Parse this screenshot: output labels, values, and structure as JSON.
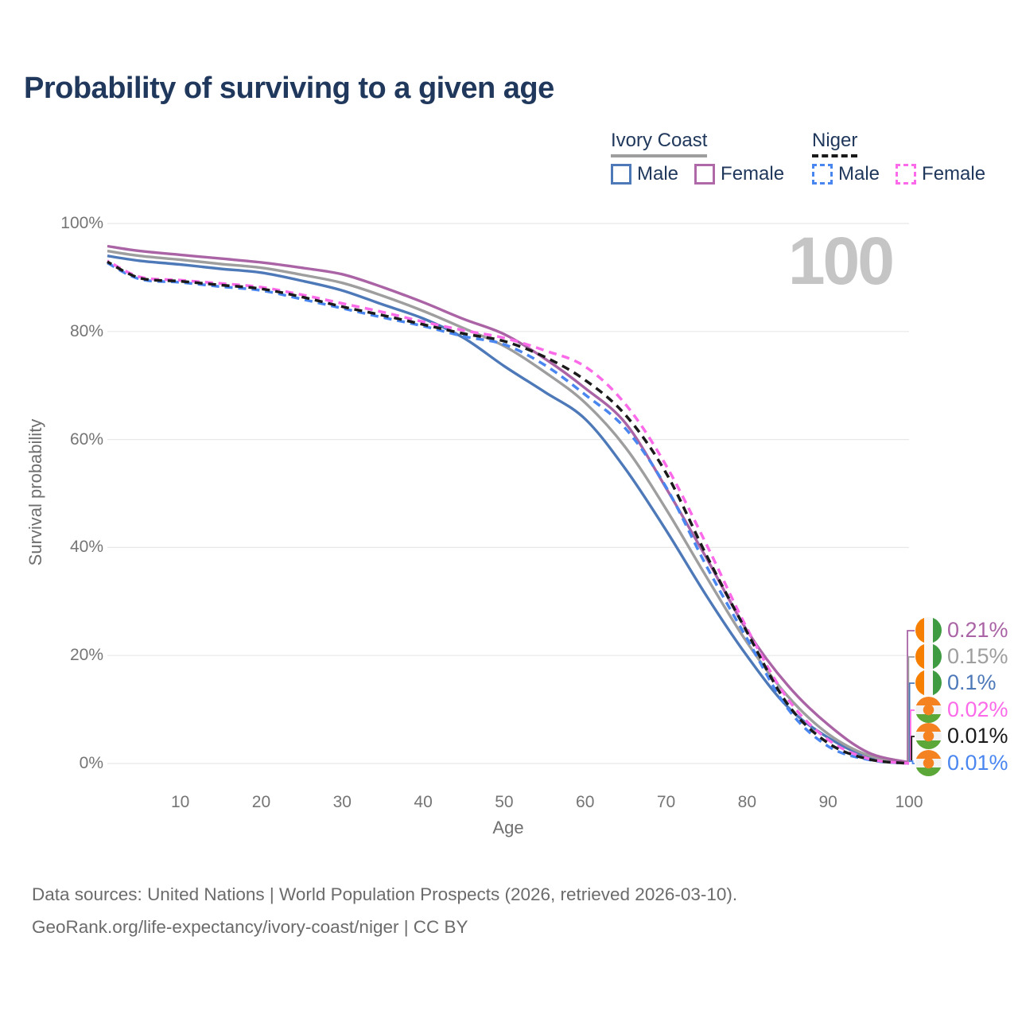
{
  "title": "Probability of surviving to a given age",
  "watermark_age": "100",
  "legend": {
    "groups": [
      {
        "title": "Ivory Coast",
        "line_style": "solid",
        "rule_color": "#9e9e9e",
        "items": [
          {
            "label": "Male",
            "color": "#4e79b9"
          },
          {
            "label": "Female",
            "color": "#b069a8"
          }
        ]
      },
      {
        "title": "Niger",
        "line_style": "dashed",
        "rule_color": "#1a1a1a",
        "items": [
          {
            "label": "Male",
            "color": "#4a86f0"
          },
          {
            "label": "Female",
            "color": "#fb6ae8"
          }
        ]
      }
    ]
  },
  "axes": {
    "x": {
      "title": "Age",
      "min": 1,
      "max": 100,
      "ticks": [
        "10",
        "20",
        "30",
        "40",
        "50",
        "60",
        "70",
        "80",
        "90",
        "100"
      ],
      "tick_values": [
        10,
        20,
        30,
        40,
        50,
        60,
        70,
        80,
        90,
        100
      ]
    },
    "y": {
      "title": "Survival probability",
      "min": 0,
      "max": 100,
      "ticks": [
        "0%",
        "20%",
        "40%",
        "60%",
        "80%",
        "100%"
      ],
      "tick_values": [
        0,
        20,
        40,
        60,
        80,
        100
      ]
    }
  },
  "chart_data": {
    "type": "line",
    "title": "Probability of surviving to a given age",
    "xlabel": "Age",
    "ylabel": "Survival probability",
    "xlim": [
      1,
      100
    ],
    "ylim": [
      0,
      100
    ],
    "grid": "horizontal-only",
    "legend_position": "top-right",
    "x": [
      1,
      5,
      10,
      15,
      20,
      25,
      30,
      35,
      40,
      45,
      50,
      55,
      60,
      65,
      70,
      75,
      80,
      85,
      90,
      95,
      100
    ],
    "series": [
      {
        "name": "Ivory Coast Female",
        "country": "Ivory Coast",
        "sex": "Female",
        "style": "solid",
        "color": "#aa63a5",
        "end_label": "0.21%",
        "values": [
          95.8,
          94.9,
          94.2,
          93.5,
          92.8,
          91.8,
          90.6,
          88.2,
          85.4,
          82.3,
          79.5,
          75.0,
          69.5,
          63.0,
          51.0,
          38.0,
          24.6,
          14.5,
          7.2,
          2.0,
          0.21
        ]
      },
      {
        "name": "Ivory Coast",
        "country": "Ivory Coast",
        "sex": "Both",
        "style": "solid",
        "color": "#9e9e9e",
        "end_label": "0.15%",
        "values": [
          94.9,
          94.0,
          93.3,
          92.5,
          91.8,
          90.5,
          89.0,
          86.6,
          83.8,
          80.6,
          77.3,
          72.5,
          66.8,
          58.5,
          47.1,
          34.5,
          22.4,
          12.5,
          5.5,
          1.5,
          0.15
        ]
      },
      {
        "name": "Ivory Coast Male",
        "country": "Ivory Coast",
        "sex": "Male",
        "style": "solid",
        "color": "#4e79b9",
        "end_label": "0.1%",
        "values": [
          94.0,
          93.1,
          92.4,
          91.6,
          90.9,
          89.4,
          87.6,
          85.0,
          82.4,
          78.8,
          73.6,
          68.8,
          63.8,
          54.5,
          43.2,
          31.0,
          19.9,
          10.5,
          4.8,
          1.2,
          0.1
        ]
      },
      {
        "name": "Niger Female",
        "country": "Niger",
        "sex": "Female",
        "style": "dashed",
        "color": "#fb6ae8",
        "end_label": "0.02%",
        "values": [
          93.1,
          90.1,
          89.5,
          88.9,
          88.2,
          86.8,
          85.2,
          83.6,
          81.8,
          80.2,
          78.8,
          76.5,
          73.5,
          66.5,
          55.2,
          40.5,
          25.0,
          12.0,
          4.4,
          0.9,
          0.02
        ]
      },
      {
        "name": "Niger",
        "country": "Niger",
        "sex": "Both",
        "style": "dashed",
        "color": "#1a1a1a",
        "end_label": "0.01%",
        "values": [
          92.9,
          89.9,
          89.3,
          88.6,
          87.9,
          86.4,
          84.6,
          83.0,
          81.3,
          79.6,
          78.2,
          75.3,
          71.0,
          64.5,
          53.8,
          38.5,
          24.3,
          11.0,
          3.8,
          0.8,
          0.01
        ]
      },
      {
        "name": "Niger Male",
        "country": "Niger",
        "sex": "Male",
        "style": "dashed",
        "color": "#4a86f0",
        "end_label": "0.01%",
        "values": [
          92.7,
          89.7,
          89.1,
          88.3,
          87.6,
          86.0,
          84.3,
          82.6,
          81.0,
          79.1,
          77.6,
          73.8,
          68.3,
          62.0,
          51.2,
          36.5,
          23.1,
          10.2,
          3.2,
          0.7,
          0.01
        ]
      }
    ]
  },
  "end_labels": [
    {
      "text": "0.21%",
      "color": "#aa63a5",
      "flag": "ivory-coast",
      "series": "Ivory Coast Female"
    },
    {
      "text": "0.15%",
      "color": "#9e9e9e",
      "flag": "ivory-coast",
      "series": "Ivory Coast"
    },
    {
      "text": "0.1%",
      "color": "#4e79b9",
      "flag": "ivory-coast",
      "series": "Ivory Coast Male"
    },
    {
      "text": "0.02%",
      "color": "#fb6ae8",
      "flag": "niger",
      "series": "Niger Female"
    },
    {
      "text": "0.01%",
      "color": "#1a1a1a",
      "flag": "niger",
      "series": "Niger"
    },
    {
      "text": "0.01%",
      "color": "#4a86f0",
      "flag": "niger",
      "series": "Niger Male"
    }
  ],
  "flags": {
    "ivory_coast_colors": [
      "#F77F00",
      "#F8F8F8",
      "#3F9B42"
    ],
    "niger_colors": [
      "#F58220",
      "#F2F2F2",
      "#5BA839"
    ]
  },
  "colors": {
    "title_text": "#20385c",
    "axis_text": "#757575",
    "gridline": "#e8e8e8",
    "watermark": "#c5c5c5",
    "footer_text": "#6b6b6b"
  },
  "footer": {
    "line1": "Data sources: United Nations | World Population Prospects (2026, retrieved 2026-03-10).",
    "line2": "GeoRank.org/life-expectancy/ivory-coast/niger | CC BY"
  }
}
